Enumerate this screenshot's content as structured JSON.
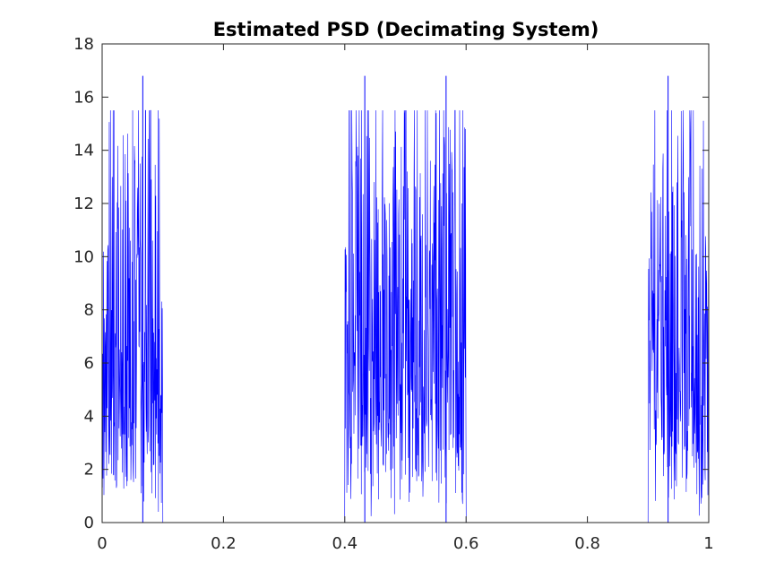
{
  "chart_data": {
    "type": "line",
    "title": "Estimated PSD (Decimating System)",
    "xlabel": "",
    "ylabel": "",
    "xlim": [
      0,
      1
    ],
    "ylim": [
      0,
      18
    ],
    "x_ticks": [
      "0",
      "0.2",
      "0.4",
      "0.6",
      "0.8",
      "1"
    ],
    "y_ticks": [
      "0",
      "2",
      "4",
      "6",
      "8",
      "10",
      "12",
      "14",
      "16",
      "18"
    ],
    "grid": false,
    "legend": "none",
    "series_color": "#0000ff",
    "bands": [
      {
        "x_start": 0.0,
        "x_end": 0.1,
        "typical_level": 7.5,
        "peak_x": 0.067,
        "peak_y": 16.8
      },
      {
        "x_start": 0.4,
        "x_end": 0.6,
        "typical_level": 7.5,
        "peak_x": 0.433,
        "peak_y": 16.8,
        "peak2_x": 0.567,
        "peak2_y": 16.8
      },
      {
        "x_start": 0.9,
        "x_end": 1.0,
        "typical_level": 7.5,
        "peak_x": 0.933,
        "peak_y": 16.8
      }
    ],
    "baseline_outside_bands": 0
  }
}
